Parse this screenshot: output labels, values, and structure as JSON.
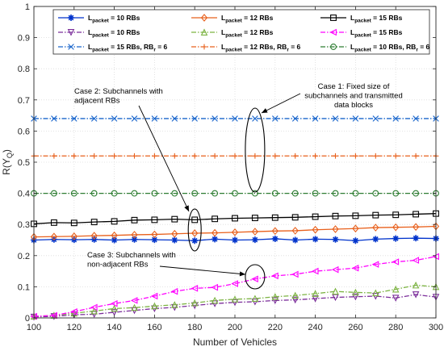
{
  "chart_data": {
    "type": "line",
    "xlabel": "Number of Vehicles",
    "ylabel": "R(Υ_Q)",
    "xlim": [
      100,
      300
    ],
    "ylim": [
      0,
      1
    ],
    "xticks": [
      100,
      120,
      140,
      160,
      180,
      200,
      220,
      240,
      260,
      280,
      300
    ],
    "yticks": [
      0,
      0.1,
      0.2,
      0.3,
      0.4,
      0.5,
      0.6,
      0.7,
      0.8,
      0.9,
      1
    ],
    "grid": true,
    "legend_placement": "top",
    "x": [
      100,
      110,
      120,
      130,
      140,
      150,
      160,
      170,
      180,
      190,
      200,
      210,
      220,
      230,
      240,
      250,
      260,
      270,
      280,
      290,
      300
    ],
    "series": [
      {
        "name": "L_packet = 10 RBs",
        "color": "#0033cc",
        "marker": "star",
        "dash": "solid",
        "values": [
          0.25,
          0.252,
          0.251,
          0.252,
          0.25,
          0.252,
          0.251,
          0.25,
          0.248,
          0.253,
          0.25,
          0.251,
          0.254,
          0.25,
          0.253,
          0.252,
          0.248,
          0.253,
          0.255,
          0.256,
          0.255
        ]
      },
      {
        "name": "L_packet = 12 RBs",
        "color": "#e8601c",
        "marker": "diamond",
        "dash": "solid",
        "values": [
          0.26,
          0.261,
          0.262,
          0.264,
          0.265,
          0.267,
          0.268,
          0.27,
          0.272,
          0.273,
          0.275,
          0.277,
          0.279,
          0.28,
          0.283,
          0.285,
          0.287,
          0.29,
          0.291,
          0.292,
          0.294
        ]
      },
      {
        "name": "L_packet = 15 RBs",
        "color": "#000000",
        "marker": "square",
        "dash": "solid",
        "values": [
          0.302,
          0.306,
          0.305,
          0.308,
          0.31,
          0.314,
          0.315,
          0.317,
          0.315,
          0.318,
          0.32,
          0.321,
          0.322,
          0.323,
          0.325,
          0.327,
          0.328,
          0.33,
          0.331,
          0.333,
          0.335
        ]
      },
      {
        "name": "L_packet = 10 RBs",
        "color": "#7b2d9a",
        "marker": "triangle-down",
        "dash": "dashdot",
        "values": [
          0.003,
          0.005,
          0.01,
          0.012,
          0.018,
          0.024,
          0.03,
          0.034,
          0.04,
          0.046,
          0.05,
          0.052,
          0.056,
          0.058,
          0.062,
          0.066,
          0.068,
          0.07,
          0.064,
          0.075,
          0.067
        ]
      },
      {
        "name": "L_packet = 12 RBs",
        "color": "#7cb342",
        "marker": "triangle-up",
        "dash": "dashdot",
        "values": [
          0.005,
          0.008,
          0.015,
          0.022,
          0.03,
          0.033,
          0.038,
          0.042,
          0.048,
          0.056,
          0.06,
          0.062,
          0.068,
          0.072,
          0.078,
          0.085,
          0.082,
          0.08,
          0.092,
          0.105,
          0.1
        ]
      },
      {
        "name": "L_packet = 15 RBs",
        "color": "#ff00ff",
        "marker": "triangle-left",
        "dash": "dashdot",
        "values": [
          0.005,
          0.008,
          0.02,
          0.034,
          0.046,
          0.056,
          0.07,
          0.085,
          0.095,
          0.098,
          0.11,
          0.125,
          0.135,
          0.14,
          0.15,
          0.155,
          0.16,
          0.172,
          0.18,
          0.185,
          0.197
        ]
      },
      {
        "name": "L_packet = 15 RBs, RB_r = 6",
        "color": "#1a66cc",
        "marker": "x",
        "dash": "dashdot",
        "values": [
          0.64,
          0.64,
          0.64,
          0.64,
          0.64,
          0.64,
          0.64,
          0.64,
          0.64,
          0.64,
          0.64,
          0.64,
          0.64,
          0.64,
          0.64,
          0.64,
          0.64,
          0.64,
          0.64,
          0.64,
          0.64
        ]
      },
      {
        "name": "L_packet = 12 RBs, RB_r = 6",
        "color": "#e8601c",
        "marker": "plus",
        "dash": "dashdot",
        "values": [
          0.52,
          0.52,
          0.52,
          0.52,
          0.52,
          0.52,
          0.52,
          0.52,
          0.52,
          0.52,
          0.52,
          0.52,
          0.52,
          0.52,
          0.52,
          0.52,
          0.52,
          0.52,
          0.52,
          0.52,
          0.52
        ]
      },
      {
        "name": "L_packet = 10 RBs, RB_r = 6",
        "color": "#2e7d32",
        "marker": "circle",
        "dash": "dashdot",
        "values": [
          0.4,
          0.4,
          0.4,
          0.4,
          0.4,
          0.4,
          0.4,
          0.4,
          0.4,
          0.4,
          0.4,
          0.4,
          0.4,
          0.4,
          0.4,
          0.4,
          0.4,
          0.4,
          0.4,
          0.4,
          0.4
        ]
      }
    ],
    "legend": [
      {
        "main": "L",
        "sub": "packet",
        "rest": " = 10 RBs",
        "sub2": "",
        "rest2": ""
      },
      {
        "main": "L",
        "sub": "packet",
        "rest": " = 12 RBs",
        "sub2": "",
        "rest2": ""
      },
      {
        "main": "L",
        "sub": "packet",
        "rest": " = 15 RBs",
        "sub2": "",
        "rest2": ""
      },
      {
        "main": "L",
        "sub": "packet",
        "rest": " = 10 RBs",
        "sub2": "",
        "rest2": ""
      },
      {
        "main": "L",
        "sub": "packet",
        "rest": " = 12 RBs",
        "sub2": "",
        "rest2": ""
      },
      {
        "main": "L",
        "sub": "packet",
        "rest": " = 15 RBs",
        "sub2": "",
        "rest2": ""
      },
      {
        "main": "L",
        "sub": "packet",
        "rest": " = 15 RBs, RB",
        "sub2": "r",
        "rest2": " = 6"
      },
      {
        "main": "L",
        "sub": "packet",
        "rest": " = 12 RBs, RB",
        "sub2": "r",
        "rest2": " = 6"
      },
      {
        "main": "L",
        "sub": "packet",
        "rest": " = 10 RBs, RB",
        "sub2": "r",
        "rest2": " = 6"
      }
    ],
    "ylabel_parts": {
      "pre": "R(Υ",
      "sub": "Q",
      "post": ")"
    },
    "annotations": [
      {
        "lines": [
          "Case 1:  Fixed size of",
          "subchannels and transmitted",
          "data blocks"
        ]
      },
      {
        "lines": [
          "Case 2: Subchannels with",
          "adjacent RBs"
        ]
      },
      {
        "lines": [
          "Case 3: Subchannels with",
          "non-adjacent RBs"
        ]
      }
    ]
  }
}
